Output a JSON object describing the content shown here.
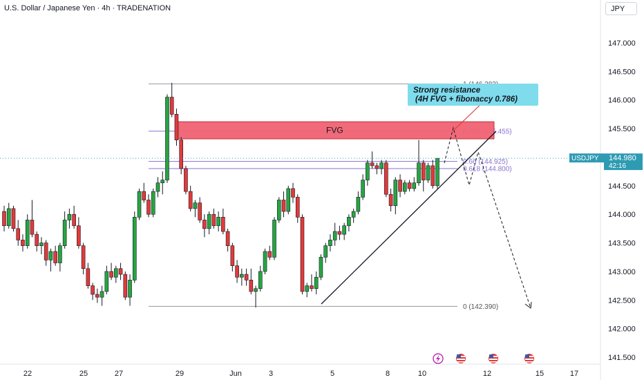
{
  "header": {
    "title": "U.S. Dollar / Japanese Yen · 4h · TRADENATION",
    "currency": "JPY"
  },
  "price_tag": {
    "symbol": "USDJPY",
    "price": "144.980",
    "countdown": "42:16"
  },
  "annotations": {
    "fvg": "FVG",
    "callout_line1": "Strong resistance",
    "callout_line2": "(4H FVG + fibonaccy 0.786)"
  },
  "colors": {
    "up": "#26a641",
    "down": "#e23a3a",
    "fvg_fill": "#f06272",
    "fib": "#8a6fd1",
    "callout_bg": "#7fdcec",
    "price_tag": "#2e9bb3"
  },
  "icons": [
    "lightning-icon",
    "us-flag-icon",
    "us-flag-icon",
    "us-flag-icon",
    "us-flag-icon"
  ],
  "chart_data": {
    "type": "candlestick",
    "ylim": [
      141.4,
      147.3
    ],
    "y_ticks": [
      "147.000",
      "146.500",
      "146.000",
      "145.500",
      "145.000",
      "144.500",
      "144.000",
      "143.500",
      "143.000",
      "142.500",
      "142.000",
      "141.500"
    ],
    "x_ticks": [
      "22",
      "25",
      "27",
      "29",
      "Jun",
      "3",
      "5",
      "8",
      "10",
      "12",
      "15",
      "17"
    ],
    "fib_levels": [
      {
        "label": "1 (146.283)",
        "value": 146.283
      },
      {
        "label": "0.786 (145.455)",
        "value": 145.455
      },
      {
        "label": "0.66 (144.925)",
        "value": 144.925
      },
      {
        "label": "0.618 (144.800)",
        "value": 144.8
      },
      {
        "label": "0 (142.390)",
        "value": 142.39
      }
    ],
    "fvg_zone": [
      145.32,
      145.62
    ],
    "candles": [
      [
        144.05,
        144.15,
        143.7,
        143.8
      ],
      [
        143.8,
        144.2,
        143.75,
        144.1
      ],
      [
        144.1,
        144.15,
        143.7,
        143.75
      ],
      [
        143.75,
        143.9,
        143.45,
        143.55
      ],
      [
        143.55,
        143.65,
        143.35,
        143.45
      ],
      [
        143.45,
        144.0,
        143.4,
        143.9
      ],
      [
        143.9,
        144.25,
        143.6,
        143.65
      ],
      [
        143.65,
        143.7,
        143.35,
        143.45
      ],
      [
        143.45,
        143.6,
        143.3,
        143.5
      ],
      [
        143.5,
        143.55,
        143.1,
        143.2
      ],
      [
        143.2,
        143.4,
        143.0,
        143.35
      ],
      [
        143.35,
        143.45,
        143.1,
        143.15
      ],
      [
        143.15,
        143.5,
        143.0,
        143.45
      ],
      [
        143.45,
        144.05,
        143.4,
        143.9
      ],
      [
        143.9,
        144.1,
        143.75,
        144.0
      ],
      [
        144.0,
        144.15,
        143.75,
        143.8
      ],
      [
        143.8,
        143.95,
        143.4,
        143.45
      ],
      [
        143.45,
        143.5,
        142.95,
        143.05
      ],
      [
        143.05,
        143.15,
        142.7,
        142.75
      ],
      [
        142.75,
        142.8,
        142.5,
        142.6
      ],
      [
        142.6,
        142.7,
        142.45,
        142.55
      ],
      [
        142.55,
        142.75,
        142.4,
        142.65
      ],
      [
        142.65,
        143.1,
        142.6,
        143.0
      ],
      [
        143.0,
        143.15,
        142.85,
        142.9
      ],
      [
        142.9,
        143.1,
        142.8,
        143.05
      ],
      [
        143.05,
        143.15,
        142.85,
        142.95
      ],
      [
        142.95,
        143.0,
        142.5,
        142.55
      ],
      [
        142.55,
        142.95,
        142.4,
        142.85
      ],
      [
        142.85,
        144.05,
        142.8,
        143.95
      ],
      [
        143.95,
        144.45,
        143.9,
        144.4
      ],
      [
        144.4,
        144.55,
        144.2,
        144.25
      ],
      [
        144.25,
        144.35,
        143.95,
        144.0
      ],
      [
        144.0,
        144.45,
        143.95,
        144.4
      ],
      [
        144.4,
        144.65,
        144.3,
        144.55
      ],
      [
        144.55,
        144.75,
        144.35,
        144.6
      ],
      [
        144.6,
        146.1,
        144.55,
        146.05
      ],
      [
        146.05,
        146.3,
        145.7,
        145.75
      ],
      [
        145.75,
        145.85,
        145.2,
        145.3
      ],
      [
        145.3,
        145.35,
        144.7,
        144.8
      ],
      [
        144.8,
        144.85,
        144.35,
        144.4
      ],
      [
        144.4,
        144.5,
        144.05,
        144.1
      ],
      [
        144.1,
        144.25,
        143.95,
        144.2
      ],
      [
        144.2,
        144.3,
        143.85,
        143.9
      ],
      [
        143.9,
        144.0,
        143.6,
        143.75
      ],
      [
        143.75,
        144.05,
        143.65,
        144.0
      ],
      [
        144.0,
        144.1,
        143.75,
        143.8
      ],
      [
        143.8,
        144.05,
        143.7,
        143.95
      ],
      [
        143.95,
        144.1,
        143.65,
        143.7
      ],
      [
        143.7,
        143.75,
        143.35,
        143.45
      ],
      [
        143.45,
        143.5,
        143.0,
        143.1
      ],
      [
        143.1,
        143.2,
        142.8,
        142.9
      ],
      [
        142.9,
        143.05,
        142.75,
        142.95
      ],
      [
        142.95,
        143.05,
        142.75,
        142.85
      ],
      [
        142.85,
        143.05,
        142.6,
        142.65
      ],
      [
        142.65,
        142.75,
        142.37,
        142.7
      ],
      [
        142.7,
        143.1,
        142.65,
        143.0
      ],
      [
        143.0,
        143.4,
        142.95,
        143.35
      ],
      [
        143.35,
        143.45,
        143.2,
        143.25
      ],
      [
        143.25,
        143.95,
        143.2,
        143.9
      ],
      [
        143.9,
        144.3,
        143.85,
        144.25
      ],
      [
        144.25,
        144.4,
        143.95,
        144.05
      ],
      [
        144.05,
        144.5,
        144.0,
        144.45
      ],
      [
        144.45,
        144.55,
        144.2,
        144.3
      ],
      [
        144.3,
        144.35,
        143.85,
        143.95
      ],
      [
        143.95,
        144.0,
        142.6,
        142.65
      ],
      [
        142.65,
        142.8,
        142.55,
        142.75
      ],
      [
        142.75,
        142.95,
        142.65,
        142.7
      ],
      [
        142.7,
        143.0,
        142.6,
        142.9
      ],
      [
        142.9,
        143.3,
        142.85,
        143.25
      ],
      [
        143.25,
        143.5,
        143.15,
        143.45
      ],
      [
        143.45,
        143.65,
        143.35,
        143.55
      ],
      [
        143.55,
        143.85,
        143.45,
        143.7
      ],
      [
        143.7,
        143.8,
        143.55,
        143.65
      ],
      [
        143.65,
        143.85,
        143.55,
        143.8
      ],
      [
        143.8,
        144.0,
        143.7,
        143.95
      ],
      [
        143.95,
        144.1,
        143.85,
        144.05
      ],
      [
        144.05,
        144.4,
        144.0,
        144.3
      ],
      [
        144.3,
        144.7,
        144.25,
        144.6
      ],
      [
        144.6,
        144.95,
        144.5,
        144.9
      ],
      [
        144.9,
        145.1,
        144.8,
        144.85
      ],
      [
        144.85,
        144.9,
        144.7,
        144.8
      ],
      [
        144.8,
        144.95,
        144.7,
        144.9
      ],
      [
        144.9,
        144.95,
        144.3,
        144.35
      ],
      [
        144.35,
        144.45,
        144.05,
        144.15
      ],
      [
        144.15,
        144.65,
        144.0,
        144.6
      ],
      [
        144.6,
        144.7,
        144.3,
        144.4
      ],
      [
        144.4,
        144.6,
        144.35,
        144.55
      ],
      [
        144.55,
        144.6,
        144.4,
        144.45
      ],
      [
        144.45,
        144.65,
        144.4,
        144.55
      ],
      [
        144.55,
        145.3,
        144.5,
        144.9
      ],
      [
        144.9,
        144.95,
        144.4,
        144.6
      ],
      [
        144.6,
        144.9,
        144.55,
        144.85
      ],
      [
        144.85,
        144.95,
        144.45,
        144.5
      ],
      [
        144.5,
        144.98,
        144.45,
        144.98
      ]
    ],
    "current_price": 144.98
  }
}
